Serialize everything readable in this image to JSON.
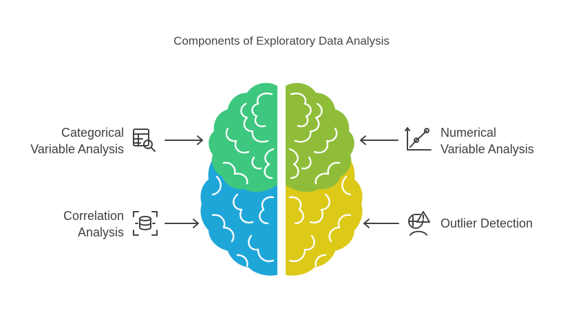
{
  "title": "Components of Exploratory Data Analysis",
  "items": [
    {
      "lines": [
        "Categorical",
        "Variable Analysis"
      ],
      "icon": "table-search-icon"
    },
    {
      "lines": [
        "Numerical",
        "Variable Analysis"
      ],
      "icon": "line-graph-icon"
    },
    {
      "lines": [
        "Correlation",
        "Analysis"
      ],
      "icon": "database-focus-icon"
    },
    {
      "lines": [
        "Outlier Detection"
      ],
      "icon": "outlier-alert-icon"
    }
  ],
  "colors": {
    "top_left": "#3ec77f",
    "top_right": "#8fbd3a",
    "bottom_left": "#1fa6d9",
    "bottom_right": "#dcc918",
    "text": "#3f3f3f",
    "arrow": "#404040"
  }
}
